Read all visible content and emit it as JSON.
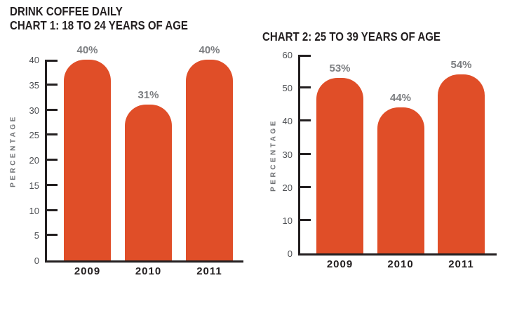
{
  "page": {
    "background": "#ffffff"
  },
  "colors": {
    "bar": "#E04E28",
    "title_text": "#231F20",
    "axis_line": "#231F20",
    "value_label_text": "#7B7D80",
    "y_tick_text": "#4D4F53",
    "x_tick_text": "#231F20",
    "y_axis_label_text": "#6D6F72"
  },
  "chart_data": [
    {
      "type": "bar",
      "title_lines": [
        "DRINK COFFEE DAILY",
        "CHART 1: 18 TO 24 YEARS OF AGE"
      ],
      "categories": [
        "2009",
        "2010",
        "2011"
      ],
      "values": [
        40,
        31,
        40
      ],
      "value_labels": [
        "40%",
        "31%",
        "40%"
      ],
      "ylabel": "PERCENTAGE",
      "ylim": [
        0,
        40
      ],
      "yticks": [
        0,
        5,
        10,
        15,
        20,
        25,
        30,
        35,
        40
      ],
      "grid": "off",
      "legend": "none"
    },
    {
      "type": "bar",
      "title_lines": [
        "CHART 2: 25 TO 39 YEARS OF AGE"
      ],
      "categories": [
        "2009",
        "2010",
        "2011"
      ],
      "values": [
        53,
        44,
        54
      ],
      "value_labels": [
        "53%",
        "44%",
        "54%"
      ],
      "ylabel": "PERCENTAGE",
      "ylim": [
        0,
        60
      ],
      "yticks": [
        0,
        10,
        20,
        30,
        40,
        50,
        60
      ],
      "grid": "off",
      "legend": "none"
    }
  ]
}
